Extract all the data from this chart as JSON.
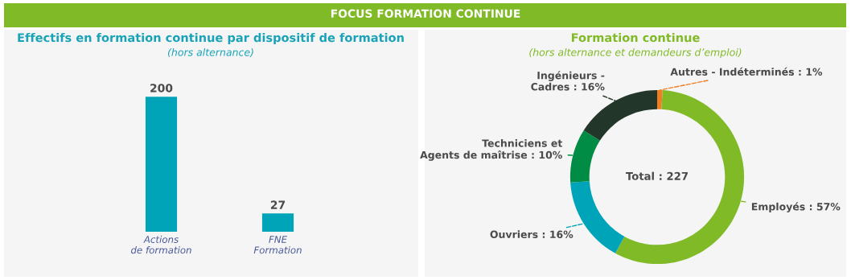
{
  "chart_data": [
    {
      "type": "bar",
      "title": "Effectifs en formation continue par dispositif de formation",
      "subtitle": "(hors alternance)",
      "annotations": [
        "FOCUS FORMATION CONTINUE"
      ],
      "categories": [
        "Actions\nde formation",
        "FNE\nFormation"
      ],
      "values": [
        200,
        27
      ],
      "color": "#00a4b8",
      "data_labels": true
    },
    {
      "type": "donut",
      "title": "Formation continue",
      "subtitle": "(hors alternance et demandeurs d’emploi)",
      "annotations": [
        "Total : 227"
      ],
      "categories": [
        "Autres - Indéterminés : 1%",
        "Employés : 57%",
        "Ouvriers : 16%",
        "Techniciens et\nAgents de maîtrise : 10%",
        "Ingénieurs -\nCadres : 16%"
      ],
      "values": [
        1,
        57,
        16,
        10,
        16
      ],
      "colors": [
        "#f07d22",
        "#80ba27",
        "#00a4b8",
        "#008c44",
        "#223629"
      ]
    }
  ]
}
